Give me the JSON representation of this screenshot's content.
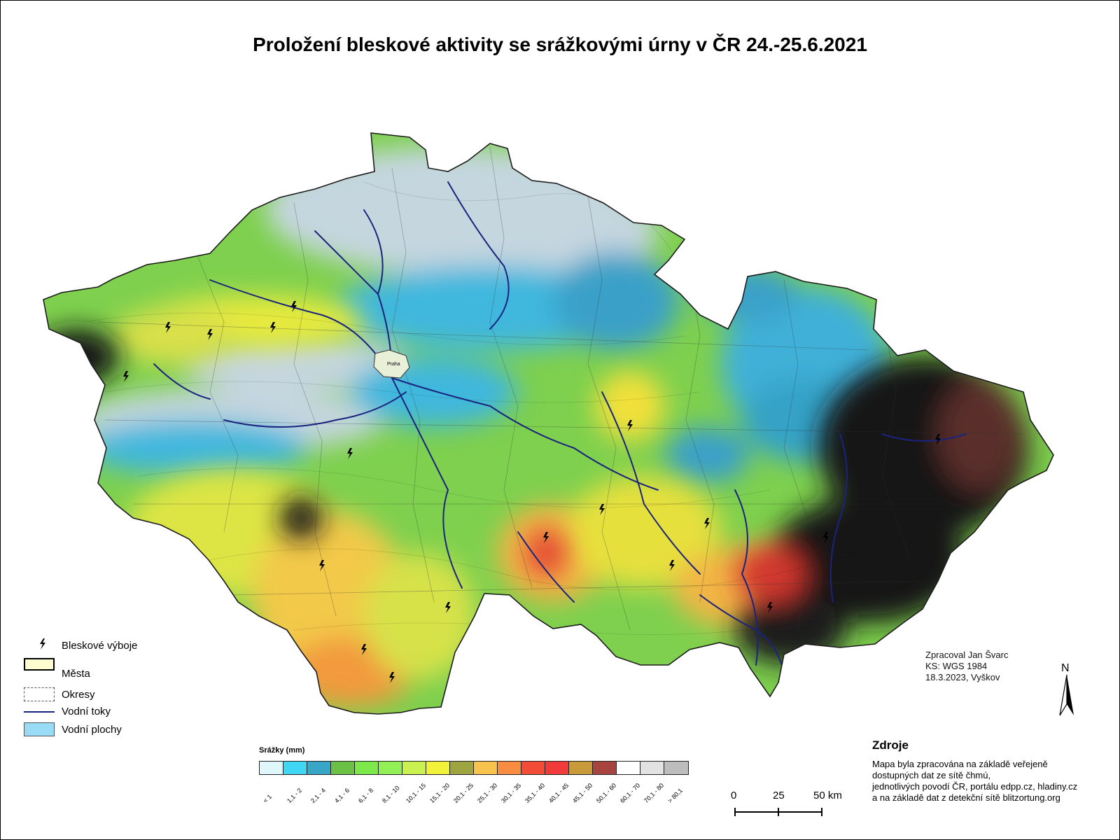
{
  "map": {
    "title": "Proložení bleskové aktivity se srážkovými úrny v ČR 24.-25.6.2021"
  },
  "legend": {
    "lightning_label": "Bleskové výboje",
    "cities_label": "Města",
    "districts_label": "Okresy",
    "rivers_label": "Vodní toky",
    "lakes_label": "Vodní plochy"
  },
  "precip_scale": {
    "title": "Srážky (mm)",
    "classes": [
      {
        "label": "< 1",
        "color": "#dff6fb"
      },
      {
        "label": "1,1 - 2",
        "color": "#3fd7f3"
      },
      {
        "label": "2,1 - 4",
        "color": "#38a6c7"
      },
      {
        "label": "4,1 - 6",
        "color": "#6ac146"
      },
      {
        "label": "6,1 - 8",
        "color": "#7de84a"
      },
      {
        "label": "8,1 - 10",
        "color": "#92ef55"
      },
      {
        "label": "10,1 - 15",
        "color": "#c9f150"
      },
      {
        "label": "15,1 - 20",
        "color": "#f2f23a"
      },
      {
        "label": "20,1 - 25",
        "color": "#9ea43f"
      },
      {
        "label": "25,1 - 30",
        "color": "#f7c34d"
      },
      {
        "label": "30,1 - 35",
        "color": "#f88c40"
      },
      {
        "label": "35,1 - 40",
        "color": "#f24b37"
      },
      {
        "label": "40,1 - 45",
        "color": "#f13a3a"
      },
      {
        "label": "45,1 - 50",
        "color": "#c99a3a"
      },
      {
        "label": "50,1 - 60",
        "color": "#a8443f"
      },
      {
        "label": "60,1 - 70",
        "color": "#ffffff"
      },
      {
        "label": "70,1 - 80",
        "color": "#e2e2e2"
      },
      {
        "label": "> 80,1",
        "color": "#bdbdbd"
      }
    ]
  },
  "credits": {
    "line1": "Zpracoval Jan Švarc",
    "line2": "KS: WGS 1984",
    "line3": "18.3.2023, Vyškov"
  },
  "north_arrow": {
    "label": "N"
  },
  "sources": {
    "title": "Zdroje",
    "line1": "Mapa byla zpracována na základě veřejeně",
    "line2": "dostupných dat ze sítě čhmú,",
    "line3": "jednotlivých povodí ČR, portálu edpp.cz, hladiny.cz",
    "line4": "a na základě dat z detekční sítě blitzortung.org"
  },
  "distance_scale": {
    "label_0": "0",
    "label_25": "25",
    "label_50": "50 km"
  },
  "map_places": {
    "prague": "Praha"
  }
}
